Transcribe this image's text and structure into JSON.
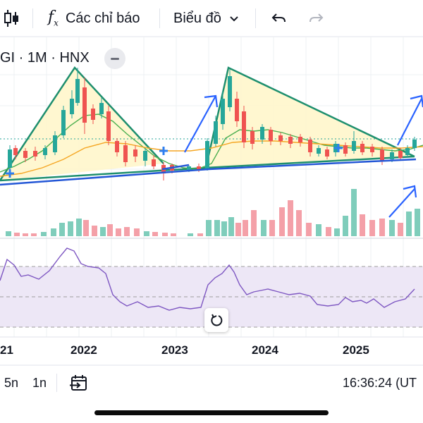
{
  "toolbar": {
    "indicators_label": "Các chỉ báo",
    "chart_type_label": "Biểu đồ"
  },
  "symbol": {
    "label": "GI · 1M · HNX"
  },
  "time_axis": {
    "labels": [
      "21",
      "2022",
      "2023",
      "2024",
      "2025"
    ]
  },
  "bottom_bar": {
    "range_5y": "5n",
    "range_1y": "1n",
    "clock": "16:36:24 (UT"
  },
  "icons": {
    "candles": "candles-icon",
    "indicators": "fx-icon",
    "chevron": "chevron-down-icon",
    "undo": "undo-icon",
    "redo": "redo-icon",
    "goto_date": "calendar-goto-icon",
    "reset": "reset-icon"
  },
  "colors": {
    "up": "#26a69a",
    "down": "#ef5350",
    "volume_up": "#7fcdbb",
    "volume_down": "#f4a0a8",
    "triangle_line": "#1e8f6e",
    "trend_arrow": "#2962ff",
    "support_line": "#2457d6",
    "rsi_line": "#7e57c2",
    "rsi_band": "#ede7f6",
    "ma_fast": "#4caf50",
    "ma_slow": "#f5a623"
  }
}
